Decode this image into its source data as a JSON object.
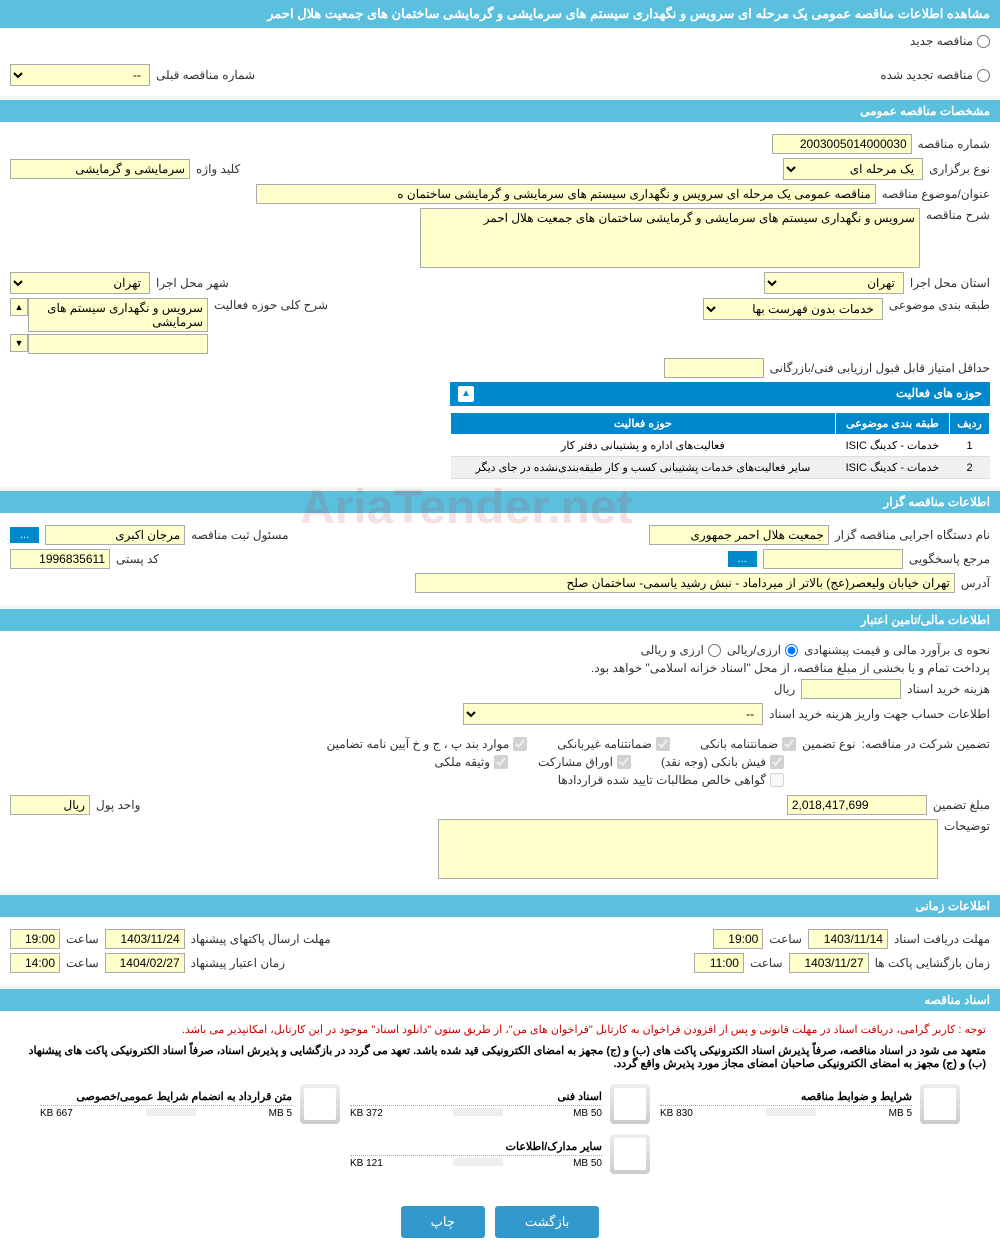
{
  "page_title": "مشاهده اطلاعات مناقصه عمومی یک مرحله ای سرویس و نگهداری سیستم های سرمایشی و گرمایشی ساختمان های جمعیت هلال احمر",
  "tender_type": {
    "new_label": "مناقصه جدید",
    "renewed_label": "مناقصه تجدید شده",
    "prev_number_label": "شماره مناقصه قبلی",
    "prev_number_value": "--"
  },
  "sections": {
    "general": "مشخصات مناقصه عمومی",
    "organizer": "اطلاعات مناقصه گزار",
    "financial": "اطلاعات مالی/تامین اعتبار",
    "timing": "اطلاعات زمانی",
    "documents": "اسناد مناقصه"
  },
  "general": {
    "tender_no_label": "شماره مناقصه",
    "tender_no": "2003005014000030",
    "holding_type_label": "نوع برگزاری",
    "holding_type": "یک مرحله ای",
    "keyword_label": "کلید واژه",
    "keyword": "سرمایشی و گرمایشی",
    "subject_label": "عنوان/موضوع مناقصه",
    "subject": "مناقصه عمومی یک مرحله ای سرویس و نگهداری سیستم های سرمایشی و گرمایشی ساختمان ه",
    "desc_label": "شرح مناقصه",
    "desc": "سرویس و نگهداری سیستم های سرمایشی و گرمایشی ساختمان های جمعیت هلال احمر",
    "province_label": "استان محل اجرا",
    "province": "تهران",
    "city_label": "شهر محل اجرا",
    "city": "تهران",
    "category_label": "طبقه بندی موضوعی",
    "category": "خدمات بدون فهرست بها",
    "scope_label": "شرح کلی حوزه فعالیت",
    "scope": "سرویس و نگهداری سیستم های سرمایشی",
    "min_score_label": "حداقل امتیاز قابل قبول ارزیابی فنی/بازرگانی",
    "activities_title": "حوزه های فعالیت",
    "activities_cols": {
      "row": "ردیف",
      "category": "طبقه بندی موضوعی",
      "scope": "حوزه فعالیت"
    },
    "activities": [
      {
        "n": "1",
        "cat": "خدمات - کدینگ ISIC",
        "scope": "فعالیت‌های  اداره و پشتیبانی دفتر کار"
      },
      {
        "n": "2",
        "cat": "خدمات - کدینگ ISIC",
        "scope": "سایر فعالیت‌های خدمات پشتیبانی کسب و کار طبقه‌بندی‌نشده در جای دیگر"
      }
    ]
  },
  "organizer": {
    "exec_label": "نام دستگاه اجرایی مناقصه گزار",
    "exec": "جمعیت هلال احمر جمهوری",
    "registrar_label": "مسئول ثبت مناقصه",
    "registrar": "مرجان اکبری",
    "contact_label": "مرجع پاسخگویی",
    "postal_label": "کد پستی",
    "postal": "1996835611",
    "address_label": "آدرس",
    "address": "تهران خیابان ولیعصر(عج) بالاتر از میرداماد - نبش رشید یاسمی-  ساختمان صلح",
    "more_btn": "..."
  },
  "financial": {
    "pricing_label": "نحوه ی برآورد مالی و قیمت پیشنهادی",
    "pricing_opt1": "ارزی/ریالی",
    "pricing_opt2": "ارزی و ریالی",
    "treasury_note": "پرداخت تمام و یا بخشی از مبلغ مناقصه، از محل \"اسناد خزانه اسلامی\" خواهد بود.",
    "doc_fee_label": "هزینه خرید اسناد",
    "rial": "ریال",
    "account_label": "اطلاعات حساب جهت واریز هزینه خرید اسناد",
    "account_value": "--",
    "guarantee_label": "تضمین شرکت در مناقصه:",
    "guarantee_type_label": "نوع تضمین",
    "guarantees": {
      "bank": "ضمانتنامه بانکی",
      "nonbank": "ضمانتنامه غیربانکی",
      "bylaw": "موارد بند پ ، ج و خ آیین نامه تضامین",
      "cash": "فیش بانکی (وجه نقد)",
      "bonds": "اوراق مشارکت",
      "property": "وثیقه ملکی",
      "cert": "گواهی خالص مطالبات تایید شده قراردادها"
    },
    "guarantee_amount_label": "مبلغ تضمین",
    "guarantee_amount": "2,018,417,699",
    "currency_label": "واحد پول",
    "currency": "ریال",
    "notes_label": "توضیحات"
  },
  "timing": {
    "doc_deadline_label": "مهلت دریافت اسناد",
    "doc_deadline_date": "1403/11/14",
    "doc_deadline_time": "19:00",
    "proposal_deadline_label": "مهلت ارسال پاکتهای پیشنهاد",
    "proposal_deadline_date": "1403/11/24",
    "proposal_deadline_time": "19:00",
    "opening_label": "زمان بازگشایی پاکت ها",
    "opening_date": "1403/11/27",
    "opening_time": "11:00",
    "validity_label": "زمان اعتبار پیشنهاد",
    "validity_date": "1404/02/27",
    "validity_time": "14:00",
    "time_label": "ساعت"
  },
  "documents": {
    "note1": "توجه : کاربر گرامی، دریافت اسناد در مهلت قانونی و پس از افزودن فراخوان به کارتابل \"فراخوان های من\"، از طریق ستون \"دانلود اسناد\" موجود در این کارتابل، امکانپذیر می باشد.",
    "note2": "متعهد می شود در اسناد مناقصه، صرفاً پذیرش اسناد الکترونیکی پاکت های (ب) و (ج) مجهز به امضای الکترونیکی قید شده باشد. تعهد می گردد در بازگشایی و پذیرش اسناد، صرفاً اسناد الکترونیکی پاکت های پیشنهاد (ب) و (ج) مجهز به امضای الکترونیکی صاحبان امضای مجاز مورد پذیرش واقع گردد.",
    "files": [
      {
        "title": "شرایط و ضوابط مناقصه",
        "used": "830 KB",
        "total": "5 MB",
        "pct": 16
      },
      {
        "title": "اسناد فنی",
        "used": "372 KB",
        "total": "50 MB",
        "pct": 1
      },
      {
        "title": "متن قرارداد به انضمام شرایط عمومی/خصوصی",
        "used": "667 KB",
        "total": "5 MB",
        "pct": 13
      },
      {
        "title": "سایر مدارک/اطلاعات",
        "used": "121 KB",
        "total": "50 MB",
        "pct": 1
      }
    ]
  },
  "footer": {
    "back": "بازگشت",
    "print": "چاپ"
  },
  "watermark": "AriaTender.net",
  "colors": {
    "header_bg": "#5bc0de",
    "table_header_bg": "#0088cc",
    "input_bg": "#ffffcc",
    "btn_bg": "#3399cc"
  }
}
